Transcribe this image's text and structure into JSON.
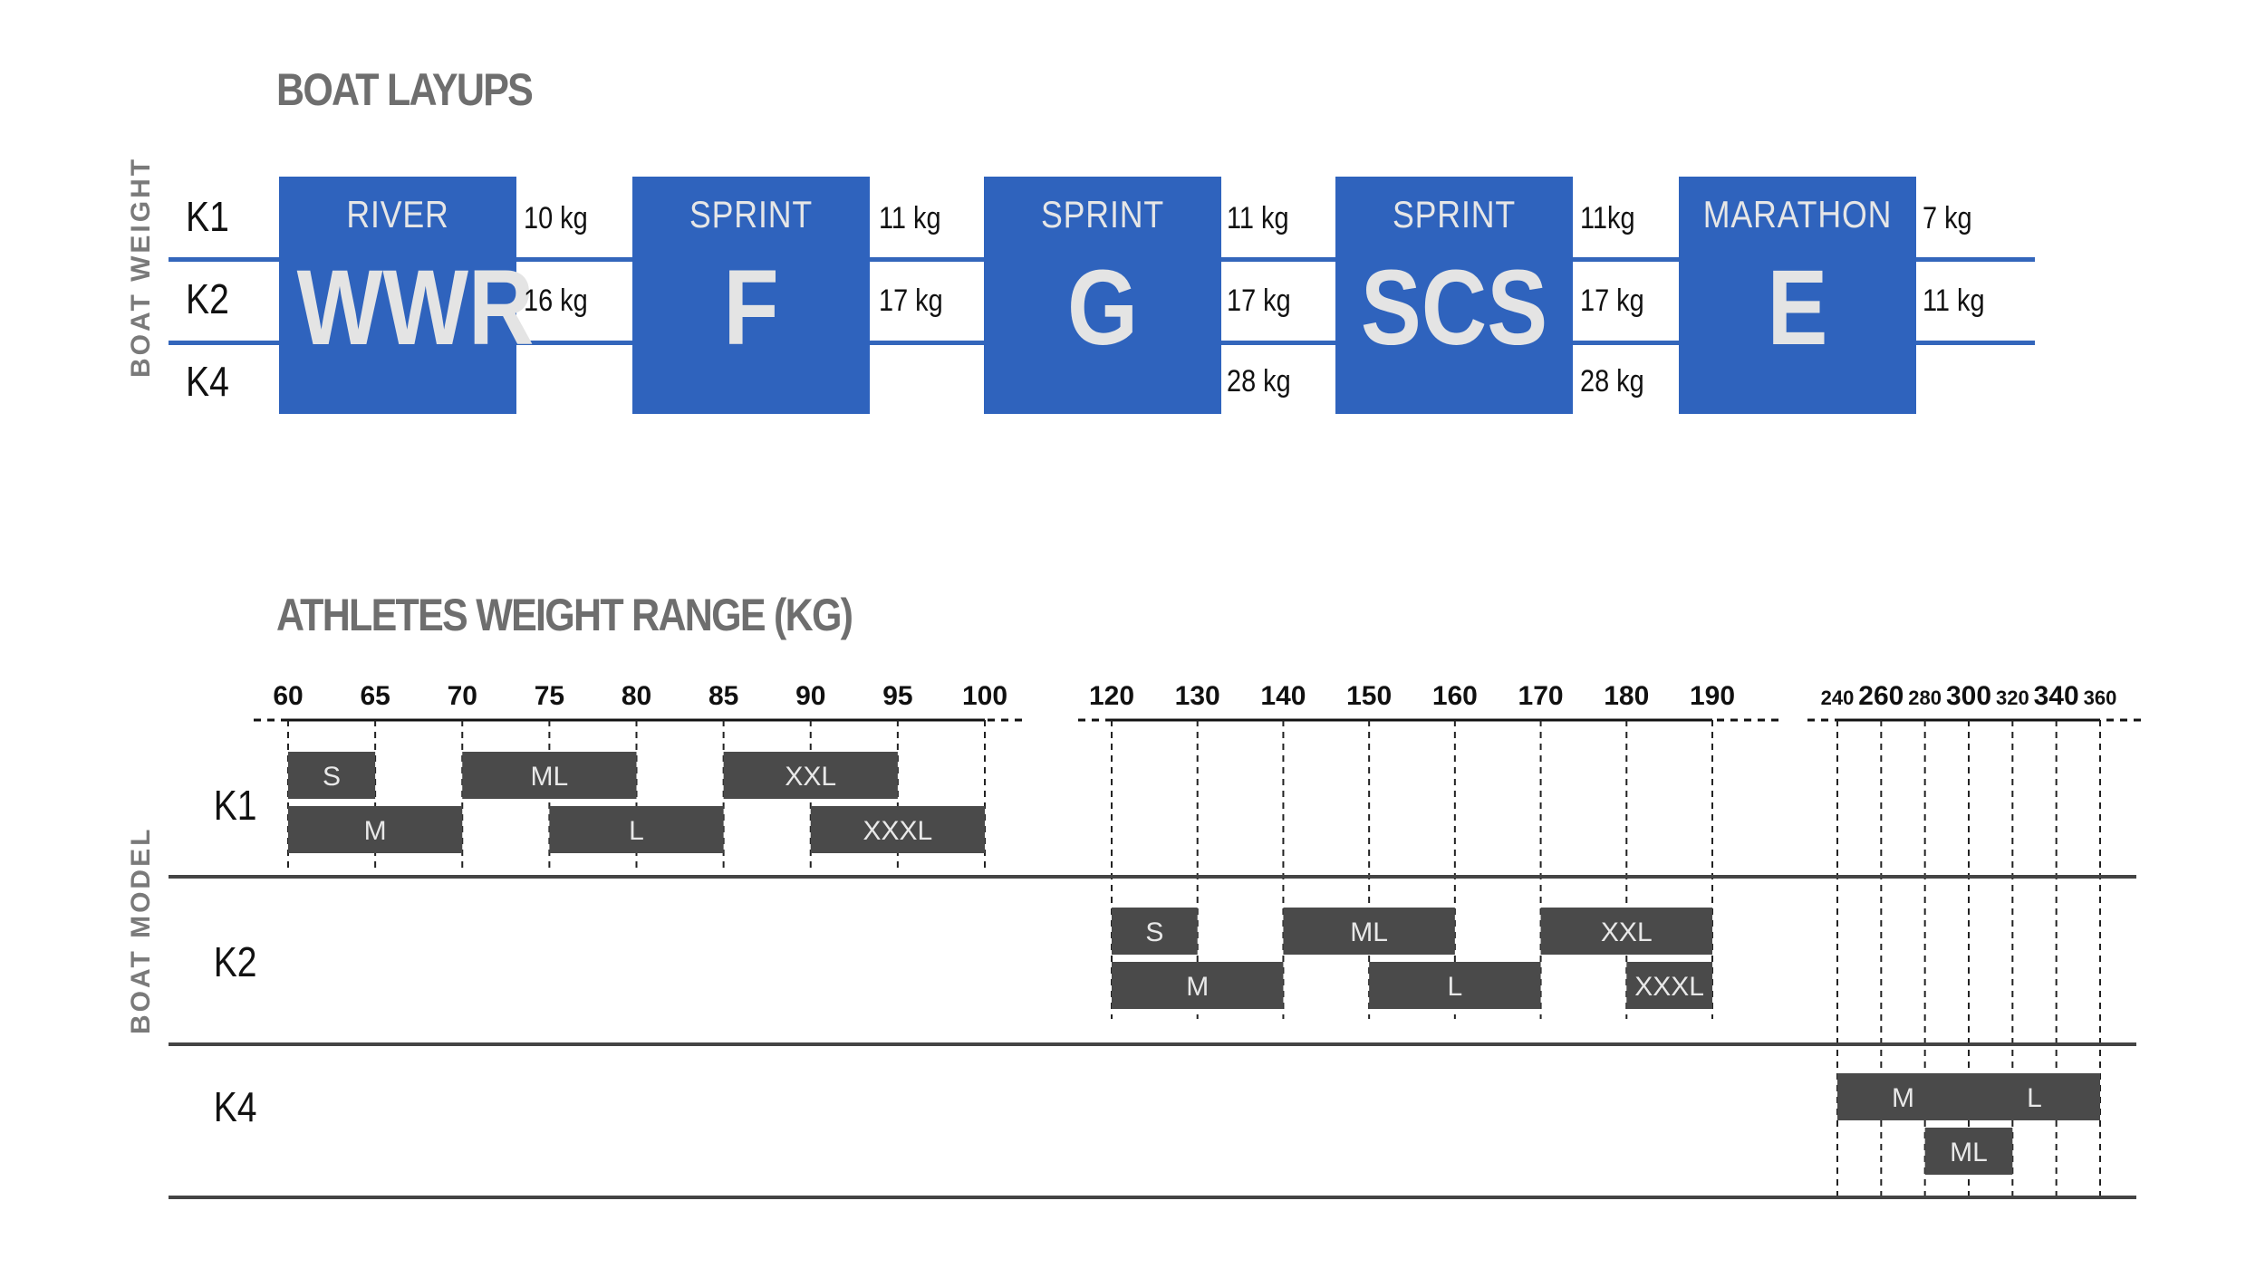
{
  "layups": {
    "title": "BOAT LAYUPS",
    "axis_label": "BOAT WEIGHT",
    "rows": [
      "K1",
      "K2",
      "K4"
    ],
    "accent_color": "#2f63bd",
    "boxes": [
      {
        "category": "RIVER",
        "code": "WWR",
        "weights": [
          "10 kg",
          "16 kg",
          ""
        ]
      },
      {
        "category": "SPRINT",
        "code": "F",
        "weights": [
          "11 kg",
          "17 kg",
          ""
        ]
      },
      {
        "category": "SPRINT",
        "code": "G",
        "weights": [
          "11 kg",
          "17 kg",
          "28 kg"
        ]
      },
      {
        "category": "SPRINT",
        "code": "SCS",
        "weights": [
          "11kg",
          "17 kg",
          "28 kg"
        ]
      },
      {
        "category": "MARATHON",
        "code": "E",
        "weights": [
          "7 kg",
          "11 kg",
          ""
        ]
      }
    ]
  },
  "ranges": {
    "title": "ATHLETES WEIGHT RANGE (KG)",
    "axis_label": "BOAT MODEL",
    "bar_color": "#4a4a4a",
    "boat_rows": [
      "K1",
      "K2",
      "K4"
    ],
    "axes": [
      {
        "ticks": [
          "60",
          "65",
          "70",
          "75",
          "80",
          "85",
          "90",
          "95",
          "100"
        ]
      },
      {
        "ticks": [
          "120",
          "130",
          "140",
          "150",
          "160",
          "170",
          "180",
          "190"
        ]
      },
      {
        "ticks": [
          "240",
          "260",
          "280",
          "300",
          "320",
          "340",
          "360"
        ]
      }
    ],
    "bars": [
      {
        "boat": "K1",
        "axis": 0,
        "lane": 0,
        "label": "S",
        "from": 60,
        "to": 65
      },
      {
        "boat": "K1",
        "axis": 0,
        "lane": 0,
        "label": "ML",
        "from": 70,
        "to": 80
      },
      {
        "boat": "K1",
        "axis": 0,
        "lane": 0,
        "label": "XXL",
        "from": 85,
        "to": 95
      },
      {
        "boat": "K1",
        "axis": 0,
        "lane": 1,
        "label": "M",
        "from": 60,
        "to": 70
      },
      {
        "boat": "K1",
        "axis": 0,
        "lane": 1,
        "label": "L",
        "from": 75,
        "to": 85
      },
      {
        "boat": "K1",
        "axis": 0,
        "lane": 1,
        "label": "XXXL",
        "from": 90,
        "to": 100
      },
      {
        "boat": "K2",
        "axis": 1,
        "lane": 0,
        "label": "S",
        "from": 120,
        "to": 130
      },
      {
        "boat": "K2",
        "axis": 1,
        "lane": 0,
        "label": "ML",
        "from": 140,
        "to": 160
      },
      {
        "boat": "K2",
        "axis": 1,
        "lane": 0,
        "label": "XXL",
        "from": 170,
        "to": 190
      },
      {
        "boat": "K2",
        "axis": 1,
        "lane": 1,
        "label": "M",
        "from": 120,
        "to": 140
      },
      {
        "boat": "K2",
        "axis": 1,
        "lane": 1,
        "label": "L",
        "from": 150,
        "to": 170
      },
      {
        "boat": "K2",
        "axis": 1,
        "lane": 1,
        "label": "XXXL",
        "from": 180,
        "to": 190
      },
      {
        "boat": "K4",
        "axis": 2,
        "lane": 0,
        "label": "M",
        "from": 240,
        "to": 300
      },
      {
        "boat": "K4",
        "axis": 2,
        "lane": 0,
        "label": "L",
        "from": 300,
        "to": 360
      },
      {
        "boat": "K4",
        "axis": 2,
        "lane": 1,
        "label": "ML",
        "from": 280,
        "to": 320
      }
    ]
  }
}
